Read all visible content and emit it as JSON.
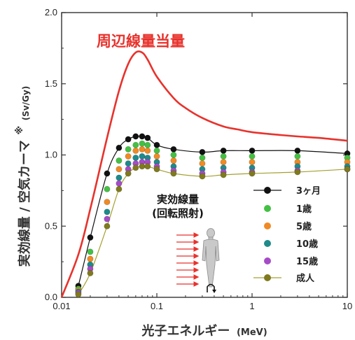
{
  "chart_data": {
    "type": "line",
    "xscale": "log",
    "xlim": [
      0.01,
      10
    ],
    "ylim": [
      0.0,
      2.0
    ],
    "x_ticks": [
      "0.01",
      "0.1",
      "1",
      "10"
    ],
    "y_ticks": [
      "0.0",
      "0.5",
      "1.0",
      "1.5",
      "2.0"
    ],
    "xlabel": "光子エネルギー",
    "xlabel_unit": "(MeV)",
    "ylabel": "実効線量 / 空気カーマ",
    "ylabel_mark": "※",
    "ylabel_unit": "(Sv/Gy)",
    "grid": false,
    "legend_position": "bottom-right",
    "annotation_red": "周辺線量当量",
    "annotation_line1": "実効線量",
    "annotation_line2": "(回転照射)",
    "series": [
      {
        "name": "",
        "color": "#e8322c",
        "marker": "none",
        "x": [
          0.01,
          0.015,
          0.02,
          0.03,
          0.04,
          0.05,
          0.06,
          0.07,
          0.08,
          0.1,
          0.15,
          0.2,
          0.3,
          0.5,
          0.7,
          1,
          2,
          3,
          5,
          10
        ],
        "y": [
          0.0,
          0.3,
          0.62,
          1.12,
          1.45,
          1.64,
          1.72,
          1.72,
          1.67,
          1.55,
          1.4,
          1.33,
          1.26,
          1.2,
          1.18,
          1.16,
          1.14,
          1.13,
          1.12,
          1.1
        ]
      },
      {
        "name": "3ヶ月",
        "color": "#111111",
        "line_color": "#111111",
        "marker": "circle",
        "x": [
          0.015,
          0.02,
          0.03,
          0.04,
          0.05,
          0.06,
          0.07,
          0.08,
          0.1,
          0.15,
          0.3,
          0.5,
          1,
          3,
          10
        ],
        "y": [
          0.08,
          0.42,
          0.87,
          1.05,
          1.11,
          1.13,
          1.13,
          1.12,
          1.07,
          1.04,
          1.02,
          1.03,
          1.03,
          1.03,
          1.01
        ]
      },
      {
        "name": "1歳",
        "color": "#44c044",
        "marker": "circle",
        "x": [
          0.015,
          0.02,
          0.03,
          0.04,
          0.05,
          0.06,
          0.07,
          0.08,
          0.1,
          0.15,
          0.3,
          0.5,
          1,
          3,
          10
        ],
        "y": [
          0.06,
          0.32,
          0.76,
          0.96,
          1.04,
          1.07,
          1.08,
          1.07,
          1.03,
          1.0,
          0.98,
          0.99,
          0.99,
          0.99,
          0.98
        ]
      },
      {
        "name": "5歳",
        "color": "#f08a24",
        "marker": "circle",
        "x": [
          0.015,
          0.02,
          0.03,
          0.04,
          0.05,
          0.06,
          0.07,
          0.08,
          0.1,
          0.15,
          0.3,
          0.5,
          1,
          3,
          10
        ],
        "y": [
          0.05,
          0.27,
          0.67,
          0.9,
          0.99,
          1.03,
          1.04,
          1.03,
          0.99,
          0.96,
          0.94,
          0.95,
          0.95,
          0.95,
          0.95
        ]
      },
      {
        "name": "10歳",
        "color": "#1f8a8a",
        "marker": "circle",
        "x": [
          0.015,
          0.02,
          0.03,
          0.04,
          0.05,
          0.06,
          0.07,
          0.08,
          0.1,
          0.15,
          0.3,
          0.5,
          1,
          3,
          10
        ],
        "y": [
          0.04,
          0.23,
          0.6,
          0.84,
          0.94,
          0.98,
          0.99,
          0.98,
          0.95,
          0.92,
          0.9,
          0.91,
          0.91,
          0.92,
          0.92
        ]
      },
      {
        "name": "15歳",
        "color": "#a64bc8",
        "marker": "circle",
        "x": [
          0.015,
          0.02,
          0.03,
          0.04,
          0.05,
          0.06,
          0.07,
          0.08,
          0.1,
          0.15,
          0.3,
          0.5,
          1,
          3,
          10
        ],
        "y": [
          0.03,
          0.2,
          0.55,
          0.8,
          0.9,
          0.94,
          0.95,
          0.95,
          0.92,
          0.89,
          0.87,
          0.88,
          0.88,
          0.89,
          0.9
        ]
      },
      {
        "name": "成人",
        "color": "#7f7a1e",
        "line_color": "#a3a030",
        "marker": "circle",
        "x": [
          0.015,
          0.02,
          0.03,
          0.04,
          0.05,
          0.06,
          0.07,
          0.08,
          0.1,
          0.15,
          0.3,
          0.5,
          1,
          3,
          10
        ],
        "y": [
          0.02,
          0.17,
          0.5,
          0.76,
          0.87,
          0.91,
          0.92,
          0.92,
          0.9,
          0.87,
          0.85,
          0.86,
          0.87,
          0.88,
          0.9
        ]
      }
    ]
  }
}
